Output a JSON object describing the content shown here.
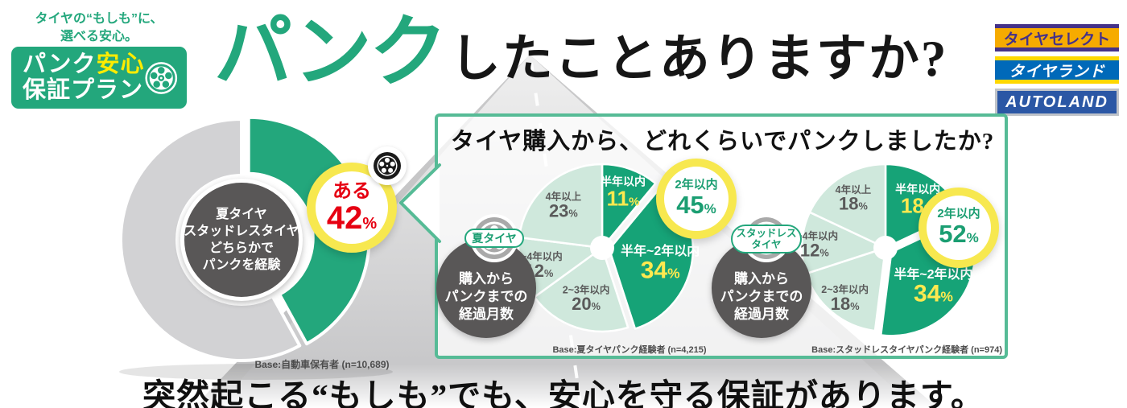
{
  "header": {
    "tagline": [
      "タイヤの“もしも”に、",
      "選べる安心。"
    ],
    "logo_badge": {
      "word1": "パンク",
      "word2": "安心",
      "line2": "保証プラン"
    },
    "title": {
      "accent": "パンク",
      "rest": "したことありますか?"
    },
    "brand_logos": [
      "タイヤセレクト",
      "タイヤランド",
      "AUTOLAND"
    ]
  },
  "box": {
    "title": "タイヤ購入から、どれくらいでパンクしましたか?"
  },
  "footer": {
    "headline": "突然起こる“もしも”でも、安心を守る保証があります。"
  },
  "colors": {
    "brand_green": "#23a77c",
    "pie_dark_green": "#16a377",
    "pie_light_green": "#cfe8dc",
    "accent_yellow": "#f7e84f",
    "accent_red": "#e60012",
    "dark_gray_circle": "#595757",
    "donut_gray": "#d2d2d4",
    "box_border_green": "#56bb96"
  },
  "chart_data": [
    {
      "type": "pie",
      "title": "",
      "center_label": [
        "夏タイヤ",
        "スタッドレスタイヤ",
        "どちらかで",
        "パンクを経験"
      ],
      "categories": [
        "ある",
        ""
      ],
      "values": [
        42,
        58
      ],
      "colors": [
        "#23a77c",
        "#d2d2d4"
      ],
      "exploded_index": 0,
      "callout": {
        "label": "ある",
        "number": "42",
        "unit": "%"
      },
      "base_note": "Base:自動車保有者 (n=10,689)"
    },
    {
      "type": "pie",
      "group": "夏タイヤ",
      "center_note": [
        "購入から",
        "パンクまでの",
        "経過月数"
      ],
      "callout": {
        "label": "2年以内",
        "number": "45",
        "unit": "%"
      },
      "categories": [
        "半年以内",
        "半年~2年以内",
        "2~3年以内",
        "3~4年以内",
        "4年以上"
      ],
      "values": [
        11,
        34,
        20,
        12,
        23
      ],
      "emphasized": [
        true,
        true,
        false,
        false,
        false
      ],
      "exploded_index": 1,
      "base_note": "Base:夏タイヤパンク経験者 (n=4,215)"
    },
    {
      "type": "pie",
      "group": "スタッドレスタイヤ",
      "group_lines": [
        "スタッドレス",
        "タイヤ"
      ],
      "center_note": [
        "購入から",
        "パンクまでの",
        "経過月数"
      ],
      "callout": {
        "label": "2年以内",
        "number": "52",
        "unit": "%"
      },
      "categories": [
        "半年以内",
        "半年~2年以内",
        "2~3年以内",
        "3~4年以内",
        "4年以上"
      ],
      "values": [
        18,
        34,
        18,
        12,
        18
      ],
      "emphasized": [
        true,
        true,
        false,
        false,
        false
      ],
      "exploded_index": 1,
      "base_note": "Base:スタッドレスタイヤパンク経験者 (n=974)"
    }
  ]
}
